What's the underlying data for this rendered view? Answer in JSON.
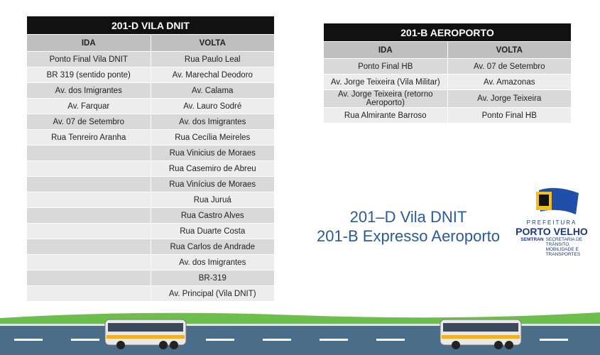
{
  "tables": [
    {
      "title": "201-D VILA DNIT",
      "headers": [
        "IDA",
        "VOLTA"
      ],
      "ida": [
        "Ponto Final Vila DNIT",
        "BR 319 (sentido ponte)",
        "Av. dos Imigrantes",
        "Av. Farquar",
        "Av. 07 de Setembro",
        "Rua Tenreiro Aranha"
      ],
      "volta": [
        "Rua Paulo Leal",
        "Av. Marechal Deodoro",
        "Av. Calama",
        "Av. Lauro Sodré",
        "Av. dos Imigrantes",
        "Rua Cecília Meireles",
        "Rua Vinicius de Moraes",
        "Rua Casemiro de Abreu",
        "Rua Vinícius de Moraes",
        "Rua Juruá",
        "Rua Castro Alves",
        "Rua Duarte Costa",
        "Rua Carlos de Andrade",
        "Av. dos Imigrantes",
        "BR-319",
        "Av. Principal (Vila DNIT)"
      ]
    },
    {
      "title": "201-B AEROPORTO",
      "headers": [
        "IDA",
        "VOLTA"
      ],
      "ida": [
        "Ponto Final HB",
        "Av. Jorge Teixeira (Vila Militar)",
        "Av. Jorge Teixeira (retorno Aeroporto)",
        "Rua Almirante Barroso"
      ],
      "volta": [
        "Av. 07 de Setembro",
        "Av. Amazonas",
        "Av. Jorge Teixeira",
        "Ponto Final HB"
      ]
    }
  ],
  "caption": [
    "201–D Vila DNIT",
    "201-B Expresso Aeroporto"
  ],
  "logo": {
    "top": "PREFEITURA",
    "name": "PORTO VELHO",
    "dept": "SEMTRAN",
    "subtitle": "SECRETARIA DE TRÂNSITO, MOBILIDADE E TRANSPORTES"
  }
}
